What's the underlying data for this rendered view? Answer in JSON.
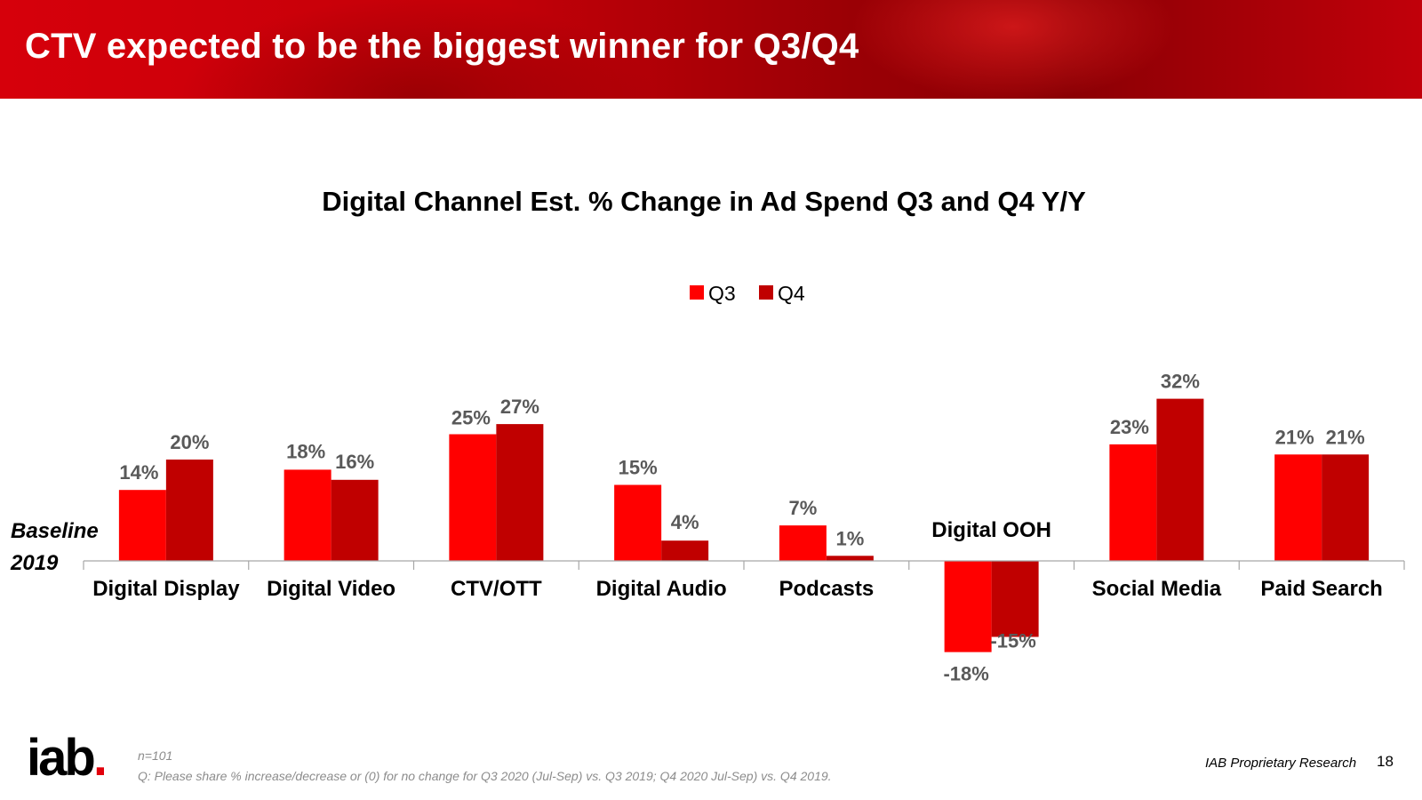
{
  "header": {
    "title": "CTV expected to be the biggest winner for Q3/Q4"
  },
  "chart_data": {
    "type": "bar",
    "title": "Digital Channel Est. % Change in Ad Spend Q3 and Q4 Y/Y",
    "categories": [
      "Digital Display",
      "Digital Video",
      "CTV/OTT",
      "Digital Audio",
      "Podcasts",
      "Digital OOH",
      "Social Media",
      "Paid Search"
    ],
    "series": [
      {
        "name": "Q3",
        "color": "#ff0000",
        "values": [
          14,
          18,
          25,
          15,
          7,
          -18,
          23,
          21
        ],
        "labels": [
          "14%",
          "18%",
          "25%",
          "15%",
          "7%",
          "-18%",
          "23%",
          "21%"
        ]
      },
      {
        "name": "Q4",
        "color": "#c00000",
        "values": [
          20,
          16,
          27,
          4,
          1,
          -15,
          32,
          21
        ],
        "labels": [
          "20%",
          "16%",
          "27%",
          "4%",
          "1%",
          "-15%",
          "32%",
          "21%"
        ]
      }
    ],
    "baseline_label": {
      "line1": "Baseline",
      "line2": "2019"
    },
    "legend_position": "top-center",
    "grid": false,
    "ylim": [
      -20,
      35
    ],
    "value_label_color": "#595959"
  },
  "footer": {
    "n_note": "n=101",
    "question": "Q: Please share % increase/decrease or (0) for no change for Q3 2020 (Jul-Sep) vs. Q3 2019; Q4 2020 Jul-Sep) vs. Q4 2019.",
    "source": "IAB Proprietary Research",
    "page_number": "18",
    "logo": {
      "text": "iab",
      "dot": ".",
      "color": "#e2000b"
    }
  }
}
